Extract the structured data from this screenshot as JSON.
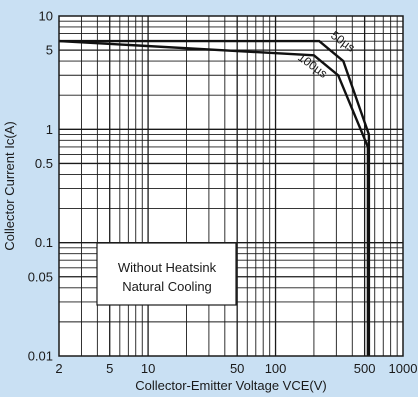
{
  "chart_data": {
    "type": "line",
    "xlabel": "Collector-Emitter Voltage VCE(V)",
    "ylabel": "Collector Current Ic(A)",
    "x_scale": "log",
    "y_scale": "log",
    "xlim": [
      2,
      1000
    ],
    "ylim": [
      0.01,
      10
    ],
    "grid": true,
    "x_ticks": [
      {
        "value": 2,
        "label": "2"
      },
      {
        "value": 5,
        "label": "5"
      },
      {
        "value": 10,
        "label": "10"
      },
      {
        "value": 50,
        "label": "50"
      },
      {
        "value": 100,
        "label": "100"
      },
      {
        "value": 500,
        "label": "500"
      },
      {
        "value": 1000,
        "label": "1000"
      }
    ],
    "y_ticks": [
      {
        "value": 10,
        "label": "10"
      },
      {
        "value": 5,
        "label": "5"
      },
      {
        "value": 1,
        "label": "1"
      },
      {
        "value": 0.5,
        "label": "0.5"
      },
      {
        "value": 0.1,
        "label": "0.1"
      },
      {
        "value": 0.05,
        "label": "0.05"
      },
      {
        "value": 0.01,
        "label": "0.01"
      }
    ],
    "series": [
      {
        "name": "50µs",
        "x": [
          2,
          220,
          340,
          540,
          540
        ],
        "y": [
          6,
          6,
          4,
          0.9,
          0.01
        ]
      },
      {
        "name": "100µs",
        "x": [
          2,
          200,
          310,
          530,
          530
        ],
        "y": [
          6,
          4.5,
          3,
          0.7,
          0.01
        ]
      }
    ],
    "annotation": [
      "Without Heatsink",
      "Natural Cooling"
    ]
  }
}
